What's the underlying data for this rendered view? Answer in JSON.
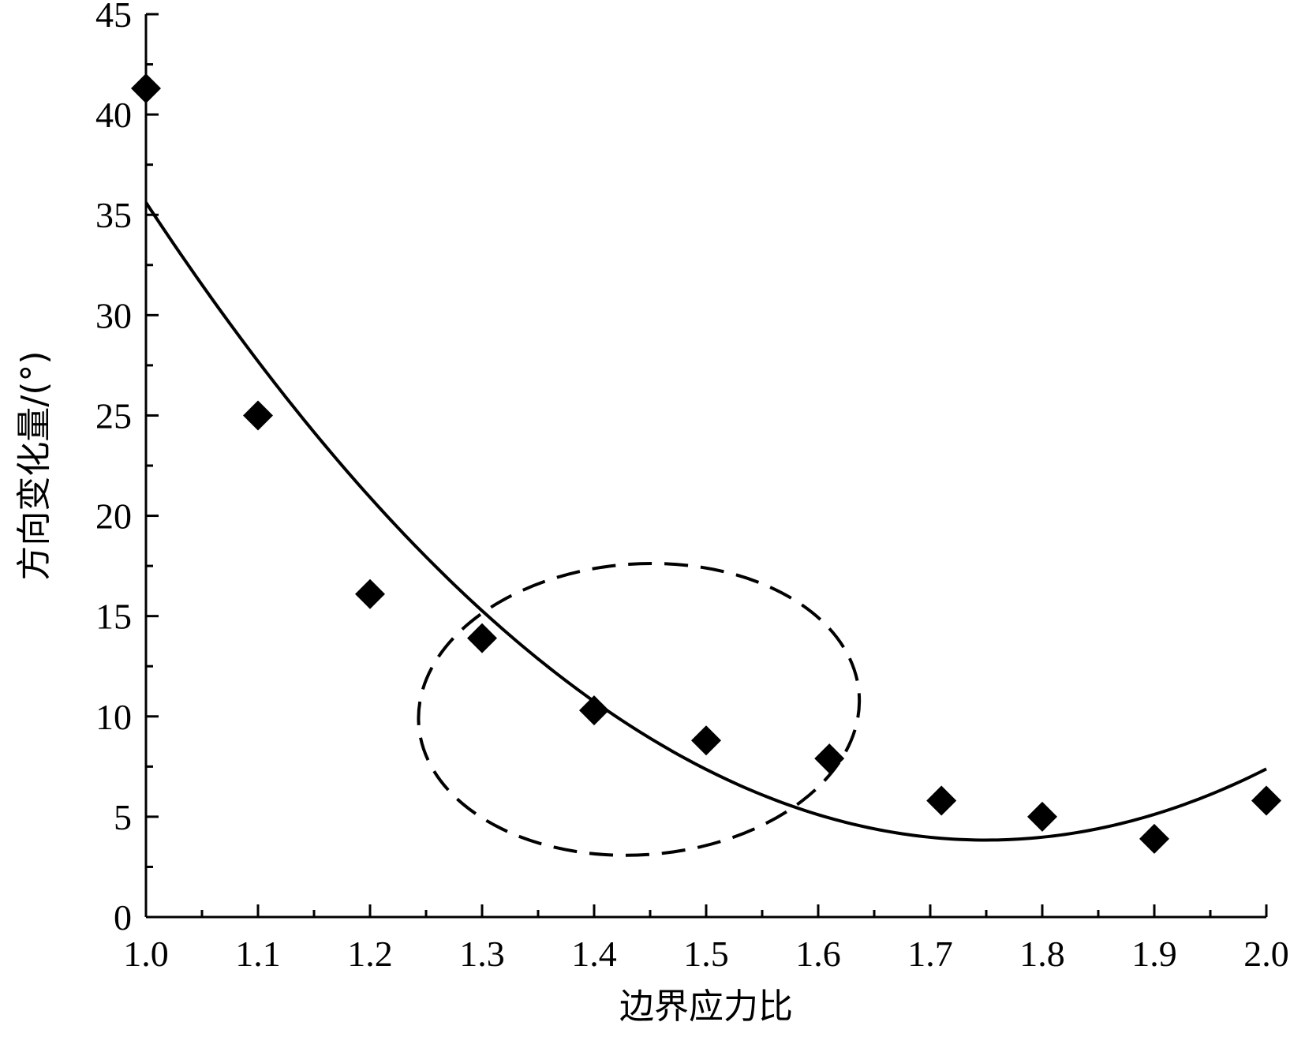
{
  "chart_data": {
    "type": "scatter",
    "title": "",
    "xlabel": "边界应力比",
    "ylabel": "方向变化量/(°)",
    "xlim": [
      1.0,
      2.0
    ],
    "ylim": [
      0,
      45
    ],
    "x_ticks": [
      "1.0",
      "1.1",
      "1.2",
      "1.3",
      "1.4",
      "1.5",
      "1.6",
      "1.7",
      "1.8",
      "1.9",
      "2.0"
    ],
    "y_ticks": [
      "0",
      "5",
      "10",
      "15",
      "20",
      "25",
      "30",
      "35",
      "40",
      "45"
    ],
    "grid": false,
    "legend": "none",
    "series": [
      {
        "type": "scatter",
        "marker": "diamond",
        "color": "#000000",
        "points": [
          {
            "x": 1.0,
            "y": 41.3
          },
          {
            "x": 1.1,
            "y": 25.0
          },
          {
            "x": 1.2,
            "y": 16.1
          },
          {
            "x": 1.3,
            "y": 13.9
          },
          {
            "x": 1.4,
            "y": 10.3
          },
          {
            "x": 1.5,
            "y": 8.8
          },
          {
            "x": 1.61,
            "y": 7.9
          },
          {
            "x": 1.71,
            "y": 5.8
          },
          {
            "x": 1.8,
            "y": 5.0
          },
          {
            "x": 1.9,
            "y": 3.9
          },
          {
            "x": 2.0,
            "y": 5.8
          }
        ]
      },
      {
        "type": "line",
        "style": "solid",
        "color": "#000000",
        "fit": "quadratic",
        "points": [
          {
            "x": 1.0,
            "y": 35.6
          },
          {
            "x": 1.3,
            "y": 15.3
          },
          {
            "x": 1.75,
            "y": 3.8
          },
          {
            "x": 2.0,
            "y": 7.4
          }
        ]
      }
    ],
    "annotations": [
      {
        "type": "ellipse",
        "style": "dashed",
        "color": "#000000",
        "center": {
          "x": 1.44,
          "y": 10.35
        },
        "radius": {
          "x": 0.197,
          "y": 7.25
        }
      }
    ]
  }
}
